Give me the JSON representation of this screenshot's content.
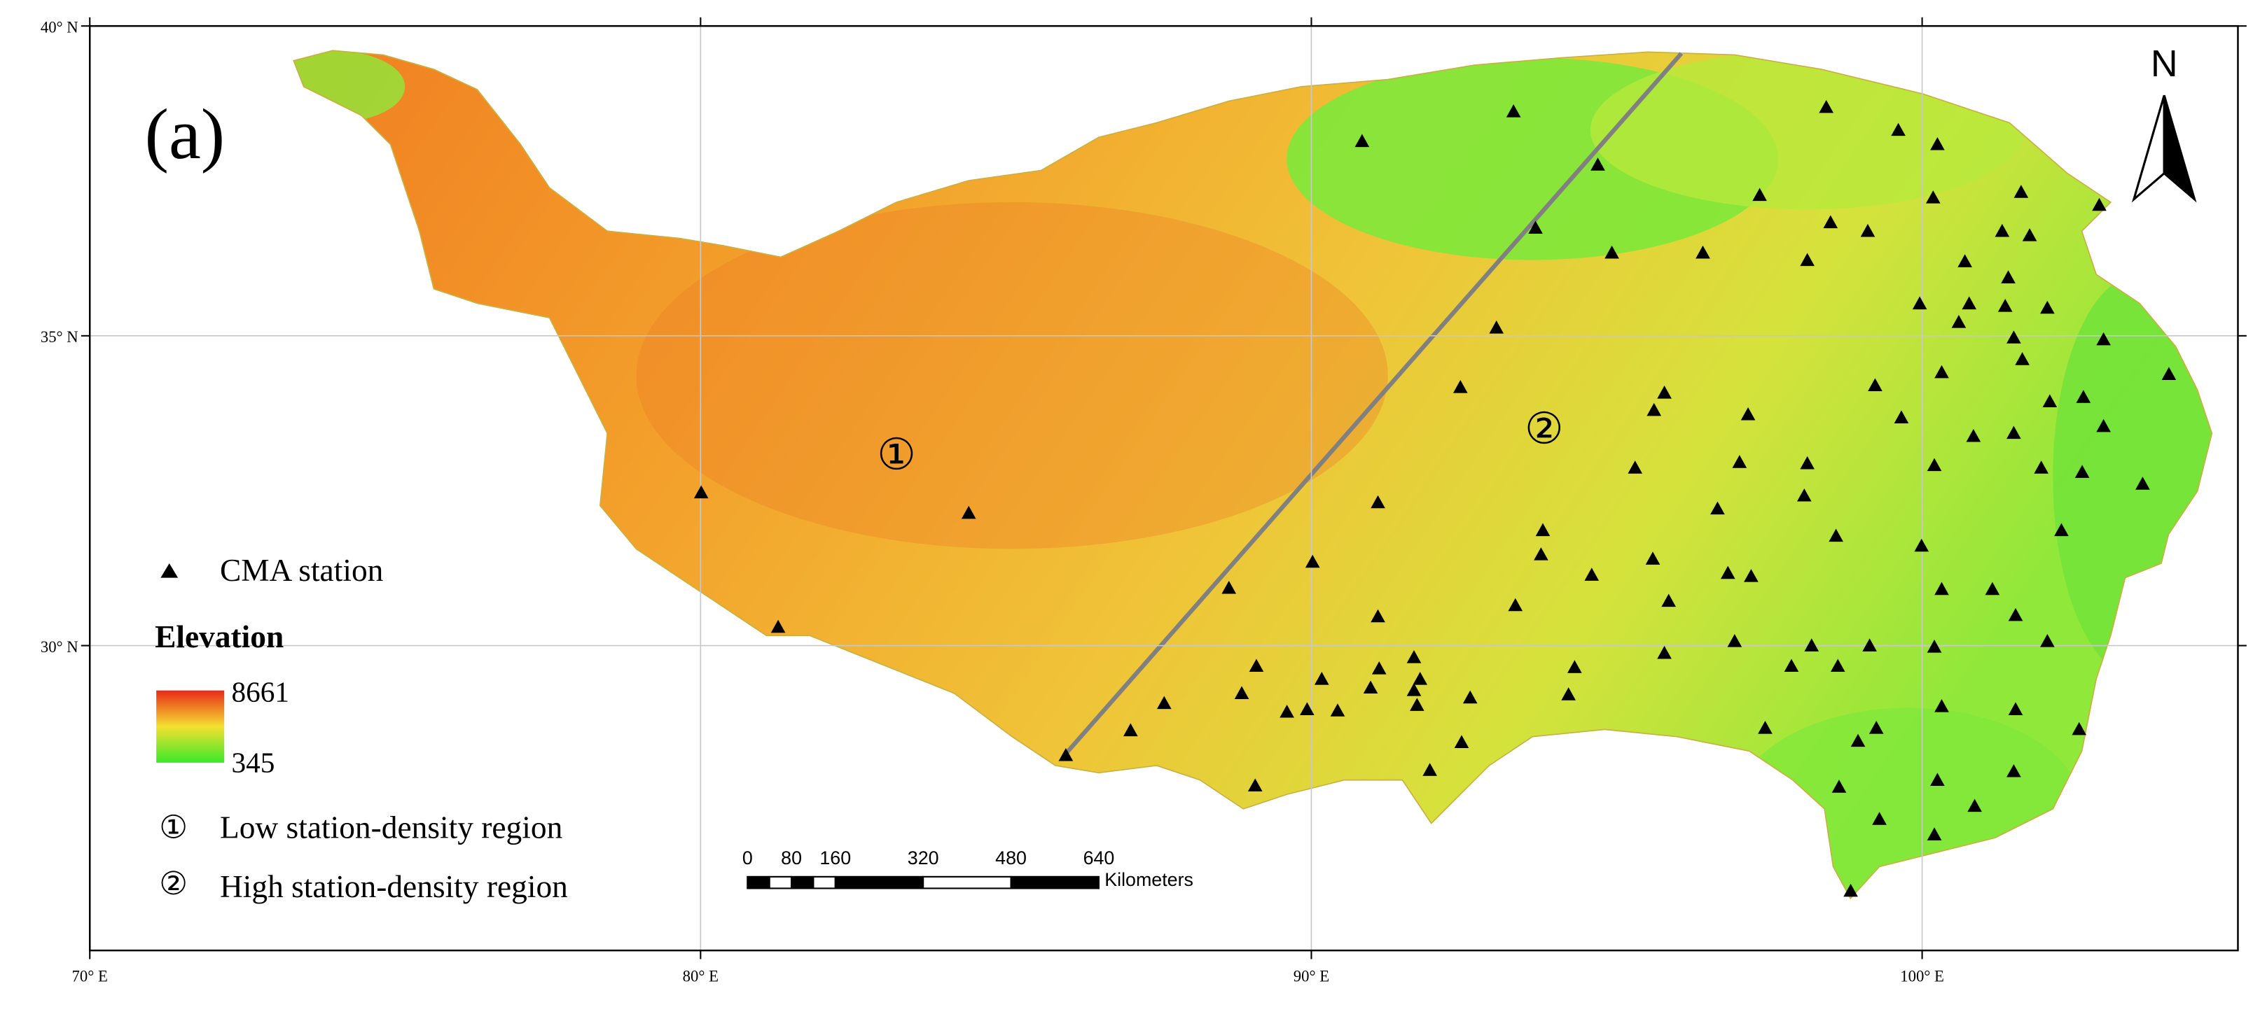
{
  "map": {
    "panel_label": "(a)",
    "north": "N",
    "lon_range": [
      70,
      105.17
    ],
    "lat_range": [
      25.08,
      40
    ],
    "lon_ticks": [
      {
        "value": 70,
        "label": "70° E"
      },
      {
        "value": 80,
        "label": "80° E"
      },
      {
        "value": 90,
        "label": "90° E"
      },
      {
        "value": 100,
        "label": "100° E"
      }
    ],
    "lat_ticks": [
      {
        "value": 40,
        "label": "40° N"
      },
      {
        "value": 35,
        "label": "35° N"
      },
      {
        "value": 30,
        "label": "30° N"
      }
    ],
    "legend": {
      "station": "CMA station",
      "elevation_title": "Elevation",
      "elevation_max": 8661,
      "elevation_min": 345,
      "regions": [
        {
          "symbol": "①",
          "text": "Low station-density region"
        },
        {
          "symbol": "②",
          "text": "High station-density region"
        }
      ]
    },
    "scale_bar": {
      "ticks": [
        0,
        80,
        160,
        320,
        480,
        640
      ],
      "unit": "Kilometers"
    },
    "stations": [
      [
        93.31,
        38.62
      ],
      [
        90.83,
        38.14
      ],
      [
        98.43,
        38.69
      ],
      [
        99.61,
        38.32
      ],
      [
        100.25,
        38.09
      ],
      [
        94.69,
        37.76
      ],
      [
        97.34,
        37.27
      ],
      [
        100.18,
        37.23
      ],
      [
        101.62,
        37.32
      ],
      [
        102.9,
        37.11
      ],
      [
        93.67,
        36.74
      ],
      [
        94.92,
        36.34
      ],
      [
        96.41,
        36.34
      ],
      [
        98.5,
        36.83
      ],
      [
        99.11,
        36.69
      ],
      [
        98.12,
        36.22
      ],
      [
        101.31,
        36.69
      ],
      [
        101.76,
        36.62
      ],
      [
        100.7,
        36.2
      ],
      [
        101.41,
        35.94
      ],
      [
        93.03,
        35.13
      ],
      [
        99.96,
        35.52
      ],
      [
        100.77,
        35.52
      ],
      [
        100.6,
        35.22
      ],
      [
        101.36,
        35.48
      ],
      [
        101.5,
        34.97
      ],
      [
        102.05,
        35.45
      ],
      [
        102.97,
        34.94
      ],
      [
        101.64,
        34.62
      ],
      [
        100.32,
        34.41
      ],
      [
        92.44,
        34.17
      ],
      [
        99.23,
        34.2
      ],
      [
        102.09,
        33.94
      ],
      [
        102.64,
        34.01
      ],
      [
        104.04,
        34.38
      ],
      [
        95.78,
        34.08
      ],
      [
        95.61,
        33.8
      ],
      [
        97.15,
        33.73
      ],
      [
        99.66,
        33.68
      ],
      [
        102.97,
        33.54
      ],
      [
        100.84,
        33.38
      ],
      [
        101.5,
        33.43
      ],
      [
        98.12,
        32.94
      ],
      [
        95.3,
        32.87
      ],
      [
        97.01,
        32.96
      ],
      [
        100.2,
        32.91
      ],
      [
        101.95,
        32.87
      ],
      [
        102.62,
        32.8
      ],
      [
        103.61,
        32.61
      ],
      [
        98.07,
        32.42
      ],
      [
        91.09,
        32.31
      ],
      [
        96.65,
        32.21
      ],
      [
        93.79,
        31.86
      ],
      [
        98.59,
        31.77
      ],
      [
        102.28,
        31.86
      ],
      [
        99.99,
        31.61
      ],
      [
        93.76,
        31.47
      ],
      [
        95.59,
        31.4
      ],
      [
        90.02,
        31.35
      ],
      [
        94.59,
        31.14
      ],
      [
        96.82,
        31.17
      ],
      [
        97.2,
        31.12
      ],
      [
        101.15,
        30.91
      ],
      [
        100.32,
        30.91
      ],
      [
        88.65,
        30.93
      ],
      [
        95.85,
        30.72
      ],
      [
        93.34,
        30.65
      ],
      [
        101.53,
        30.49
      ],
      [
        91.09,
        30.47
      ],
      [
        98.19,
        30.0
      ],
      [
        99.14,
        30.0
      ],
      [
        100.2,
        29.98
      ],
      [
        102.05,
        30.07
      ],
      [
        96.93,
        30.07
      ],
      [
        95.78,
        29.88
      ],
      [
        89.1,
        29.67
      ],
      [
        90.17,
        29.46
      ],
      [
        91.11,
        29.63
      ],
      [
        91.68,
        29.81
      ],
      [
        91.78,
        29.46
      ],
      [
        97.86,
        29.67
      ],
      [
        98.62,
        29.67
      ],
      [
        94.31,
        29.65
      ],
      [
        88.86,
        29.23
      ],
      [
        89.93,
        28.97
      ],
      [
        90.97,
        29.32
      ],
      [
        91.68,
        29.28
      ],
      [
        94.21,
        29.21
      ],
      [
        91.73,
        29.04
      ],
      [
        92.6,
        29.16
      ],
      [
        87.59,
        29.07
      ],
      [
        89.6,
        28.93
      ],
      [
        90.43,
        28.95
      ],
      [
        100.32,
        29.02
      ],
      [
        101.53,
        28.97
      ],
      [
        97.43,
        28.67
      ],
      [
        102.57,
        28.65
      ],
      [
        99.25,
        28.67
      ],
      [
        87.04,
        28.63
      ],
      [
        92.46,
        28.44
      ],
      [
        98.95,
        28.46
      ],
      [
        100.25,
        27.83
      ],
      [
        101.5,
        27.97
      ],
      [
        91.94,
        27.99
      ],
      [
        98.64,
        27.72
      ],
      [
        99.3,
        27.2
      ],
      [
        100.2,
        26.95
      ],
      [
        100.86,
        27.41
      ],
      [
        85.98,
        28.23
      ],
      [
        89.08,
        27.74
      ],
      [
        98.83,
        26.04
      ],
      [
        80.01,
        32.47
      ],
      [
        84.39,
        32.14
      ],
      [
        81.27,
        30.3
      ]
    ]
  }
}
